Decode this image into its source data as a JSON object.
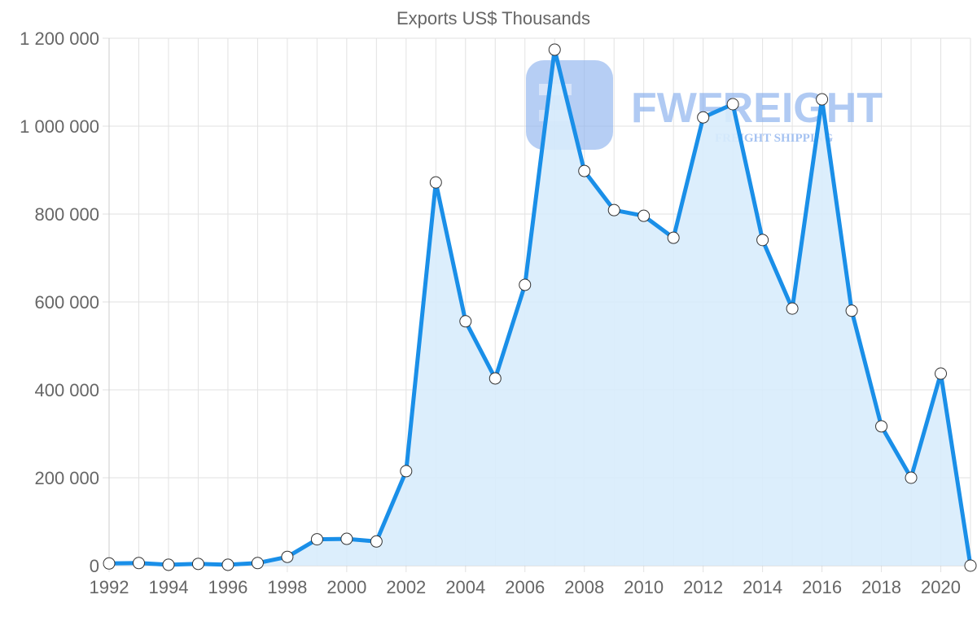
{
  "chart_data": {
    "type": "area",
    "title": "Exports US$ Thousands",
    "xlabel": "",
    "ylabel": "",
    "x": [
      1992,
      1993,
      1994,
      1995,
      1996,
      1997,
      1998,
      1999,
      2000,
      2001,
      2002,
      2003,
      2004,
      2005,
      2006,
      2007,
      2008,
      2009,
      2010,
      2011,
      2012,
      2013,
      2014,
      2015,
      2016,
      2017,
      2018,
      2019,
      2020,
      2021
    ],
    "series": [
      {
        "name": "Exports US$ Thousands",
        "values": [
          5000,
          6000,
          2000,
          4000,
          2000,
          6000,
          20000,
          60000,
          61000,
          55000,
          215000,
          872000,
          556000,
          426000,
          639000,
          1174000,
          898000,
          809000,
          796000,
          746000,
          1020000,
          1050000,
          741000,
          585000,
          1061000,
          580000,
          317000,
          200000,
          437000,
          0
        ]
      }
    ],
    "ylim": [
      0,
      1200000
    ],
    "yticks": [
      "0",
      "200 000",
      "400 000",
      "600 000",
      "800 000",
      "1 000 000",
      "1 200 000"
    ],
    "xticks": [
      "1992",
      "1994",
      "1996",
      "1998",
      "2000",
      "2002",
      "2004",
      "2006",
      "2008",
      "2010",
      "2012",
      "2014",
      "2016",
      "2018",
      "2020"
    ],
    "grid": true,
    "legend": "none",
    "colors": {
      "line": "#1a8fe8",
      "fill": "#d8ecfc",
      "point_fill": "#ffffff",
      "point_stroke": "#333333"
    }
  },
  "watermark": {
    "brand": "FWFREIGHT",
    "tagline": "FREIGHT SHIPPING"
  }
}
